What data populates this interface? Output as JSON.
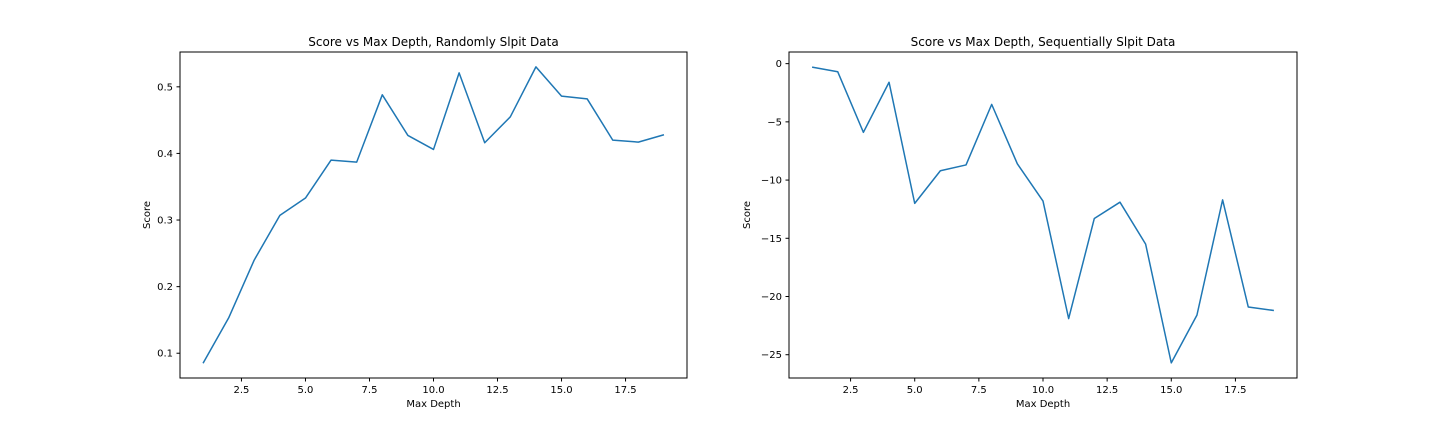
{
  "chart_data": [
    {
      "type": "line",
      "title": "Score vs Max Depth, Randomly Slpit Data",
      "xlabel": "Max Depth",
      "ylabel": "Score",
      "xlim": [
        0.1,
        19.9
      ],
      "ylim": [
        0.0628,
        0.5523
      ],
      "x_ticks": [
        2.5,
        5.0,
        7.5,
        10.0,
        12.5,
        15.0,
        17.5
      ],
      "x_tick_labels": [
        "2.5",
        "5.0",
        "7.5",
        "10.0",
        "12.5",
        "15.0",
        "17.5"
      ],
      "y_ticks": [
        0.1,
        0.2,
        0.3,
        0.4,
        0.5
      ],
      "y_tick_labels": [
        "0.1",
        "0.2",
        "0.3",
        "0.4",
        "0.5"
      ],
      "grid": false,
      "series": [
        {
          "color": "#1f77b4",
          "x": [
            1,
            2,
            3,
            4,
            5,
            6,
            7,
            8,
            9,
            10,
            11,
            12,
            13,
            14,
            15,
            16,
            17,
            18,
            19
          ],
          "values": [
            0.085,
            0.153,
            0.24,
            0.307,
            0.333,
            0.39,
            0.387,
            0.488,
            0.427,
            0.406,
            0.521,
            0.416,
            0.455,
            0.53,
            0.486,
            0.482,
            0.42,
            0.417,
            0.428
          ]
        }
      ]
    },
    {
      "type": "line",
      "title": "Score vs Max Depth, Sequentially Slpit Data",
      "xlabel": "Max Depth",
      "ylabel": "Score",
      "xlim": [
        0.1,
        19.9
      ],
      "ylim": [
        -27.0,
        1.0
      ],
      "x_ticks": [
        2.5,
        5.0,
        7.5,
        10.0,
        12.5,
        15.0,
        17.5
      ],
      "x_tick_labels": [
        "2.5",
        "5.0",
        "7.5",
        "10.0",
        "12.5",
        "15.0",
        "17.5"
      ],
      "y_ticks": [
        0,
        -5,
        -10,
        -15,
        -20,
        -25
      ],
      "y_tick_labels": [
        "0",
        "−5",
        "−10",
        "−15",
        "−20",
        "−25"
      ],
      "grid": false,
      "series": [
        {
          "color": "#1f77b4",
          "x": [
            1,
            2,
            3,
            4,
            5,
            6,
            7,
            8,
            9,
            10,
            11,
            12,
            13,
            14,
            15,
            16,
            17,
            18,
            19
          ],
          "values": [
            -0.3,
            -0.7,
            -5.9,
            -1.6,
            -12.0,
            -9.2,
            -8.7,
            -3.5,
            -8.6,
            -11.8,
            -21.9,
            -13.3,
            -11.9,
            -15.5,
            -25.7,
            -21.6,
            -11.7,
            -20.9,
            -21.2
          ]
        }
      ]
    }
  ]
}
